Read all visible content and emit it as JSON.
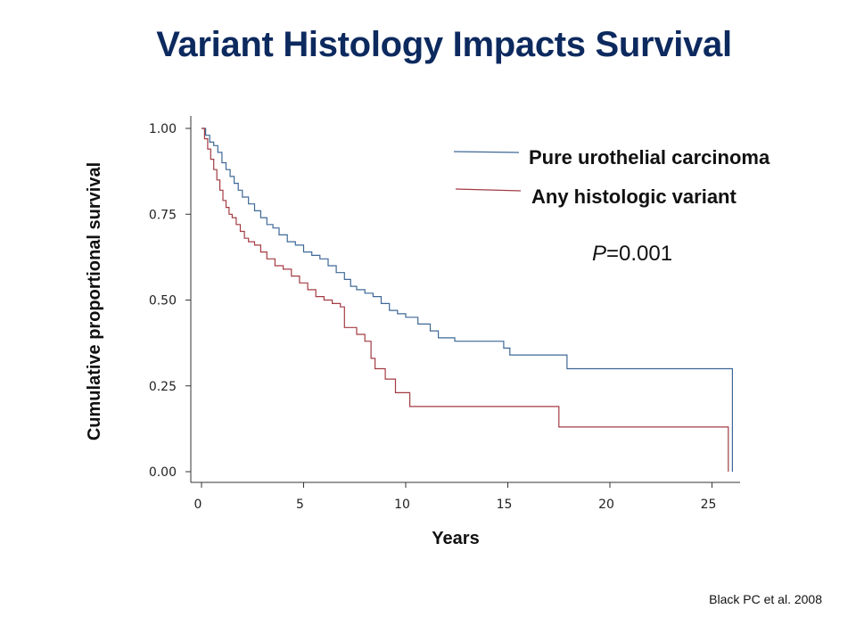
{
  "title": "Variant Histology Impacts Survival",
  "citation": "Black PC et al. 2008",
  "chart_data": {
    "type": "line",
    "step": true,
    "xlabel": "Years",
    "ylabel": "Cumulative proportional survival",
    "xlim": [
      -0.5,
      26.5
    ],
    "ylim": [
      0,
      1
    ],
    "xticks": [
      "0",
      "5",
      "10",
      "15",
      "20",
      "25"
    ],
    "yticks": [
      "0.00",
      "0.25",
      "0.50",
      "0.75",
      "1.00"
    ],
    "annotation": {
      "italic": "P",
      "text": "=0.001"
    },
    "legend_position": "top-right",
    "series": [
      {
        "name": "Pure urothelial carcinoma",
        "color": "#3e6897",
        "x": [
          0,
          0.2,
          0.4,
          0.6,
          0.8,
          1.0,
          1.2,
          1.4,
          1.6,
          1.8,
          2.0,
          2.3,
          2.6,
          2.9,
          3.2,
          3.5,
          3.8,
          4.2,
          4.6,
          5.0,
          5.4,
          5.8,
          6.2,
          6.6,
          7.0,
          7.3,
          7.6,
          8.0,
          8.4,
          8.8,
          9.2,
          9.6,
          10.0,
          10.6,
          11.2,
          11.6,
          12.4,
          14.8,
          15.1,
          17.9,
          26.0
        ],
        "y": [
          1.0,
          0.98,
          0.96,
          0.95,
          0.93,
          0.9,
          0.88,
          0.86,
          0.84,
          0.82,
          0.8,
          0.78,
          0.76,
          0.74,
          0.72,
          0.71,
          0.69,
          0.67,
          0.66,
          0.64,
          0.63,
          0.62,
          0.6,
          0.58,
          0.56,
          0.54,
          0.53,
          0.52,
          0.51,
          0.49,
          0.47,
          0.46,
          0.45,
          0.43,
          0.41,
          0.39,
          0.38,
          0.36,
          0.34,
          0.3,
          0.0
        ]
      },
      {
        "name": "Any histologic variant",
        "color": "#a33b43",
        "x": [
          0,
          0.15,
          0.3,
          0.45,
          0.6,
          0.75,
          0.9,
          1.05,
          1.2,
          1.35,
          1.5,
          1.7,
          1.9,
          2.1,
          2.3,
          2.6,
          2.9,
          3.2,
          3.6,
          4.0,
          4.4,
          4.8,
          5.2,
          5.6,
          6.0,
          6.4,
          6.8,
          7.0,
          7.6,
          8.0,
          8.3,
          8.5,
          9.0,
          9.5,
          10.2,
          17.5,
          25.8
        ],
        "y": [
          1.0,
          0.97,
          0.94,
          0.91,
          0.88,
          0.85,
          0.82,
          0.79,
          0.77,
          0.75,
          0.74,
          0.72,
          0.7,
          0.68,
          0.67,
          0.66,
          0.64,
          0.62,
          0.6,
          0.59,
          0.57,
          0.55,
          0.53,
          0.51,
          0.5,
          0.49,
          0.48,
          0.42,
          0.4,
          0.38,
          0.33,
          0.3,
          0.27,
          0.23,
          0.19,
          0.13,
          0.0
        ]
      }
    ]
  }
}
